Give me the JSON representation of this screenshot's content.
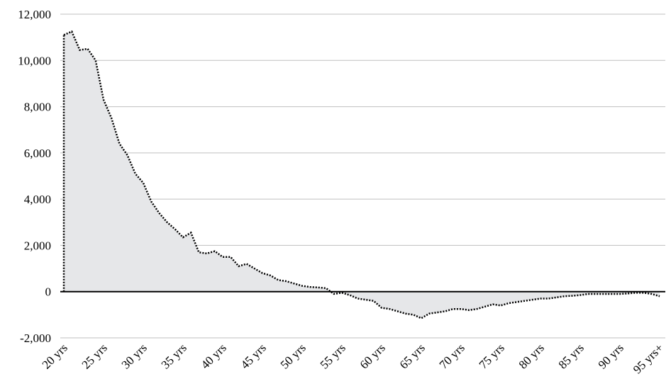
{
  "chart_data": {
    "type": "area",
    "categories": [
      "20 yrs",
      null,
      null,
      null,
      null,
      "25 yrs",
      null,
      null,
      null,
      null,
      "30 yrs",
      null,
      null,
      null,
      null,
      "35 yrs",
      null,
      null,
      null,
      null,
      "40 yrs",
      null,
      null,
      null,
      null,
      "45 yrs",
      null,
      null,
      null,
      null,
      "50 yrs",
      null,
      null,
      null,
      null,
      "55 yrs",
      null,
      null,
      null,
      null,
      "60 yrs",
      null,
      null,
      null,
      null,
      "65 yrs",
      null,
      null,
      null,
      null,
      "70 yrs",
      null,
      null,
      null,
      null,
      "75 yrs",
      null,
      null,
      null,
      null,
      "80 yrs",
      null,
      null,
      null,
      null,
      "85 yrs",
      null,
      null,
      null,
      null,
      "90 yrs",
      null,
      null,
      null,
      null,
      "95 yrs+"
    ],
    "values": [
      11100,
      11250,
      10450,
      10500,
      10000,
      8300,
      7500,
      6400,
      5900,
      5100,
      4700,
      3900,
      3400,
      3000,
      2700,
      2350,
      2550,
      1700,
      1650,
      1750,
      1500,
      1500,
      1100,
      1200,
      1000,
      800,
      700,
      500,
      450,
      350,
      250,
      200,
      180,
      150,
      -100,
      -50,
      -150,
      -300,
      -350,
      -400,
      -700,
      -750,
      -850,
      -950,
      -1000,
      -1150,
      -950,
      -900,
      -850,
      -750,
      -750,
      -800,
      -750,
      -650,
      -550,
      -600,
      -500,
      -450,
      -400,
      -350,
      -300,
      -300,
      -250,
      -200,
      -180,
      -150,
      -100,
      -100,
      -100,
      -100,
      -100,
      -80,
      -50,
      -50,
      -100,
      -200
    ],
    "color": "#e6e7e9",
    "line_color": "#000000",
    "ylim": [
      -2000,
      12000
    ],
    "yticks": [
      {
        "value": -2000,
        "label": "-2,000"
      },
      0,
      {
        "value": 2000,
        "label": "2,000"
      },
      {
        "value": 4000,
        "label": "4,000"
      },
      {
        "value": 6000,
        "label": "6,000"
      },
      {
        "value": 8000,
        "label": "8,000"
      },
      {
        "value": 10000,
        "label": "10,000"
      },
      {
        "value": 12000,
        "label": "12,000"
      }
    ],
    "grid": true
  }
}
